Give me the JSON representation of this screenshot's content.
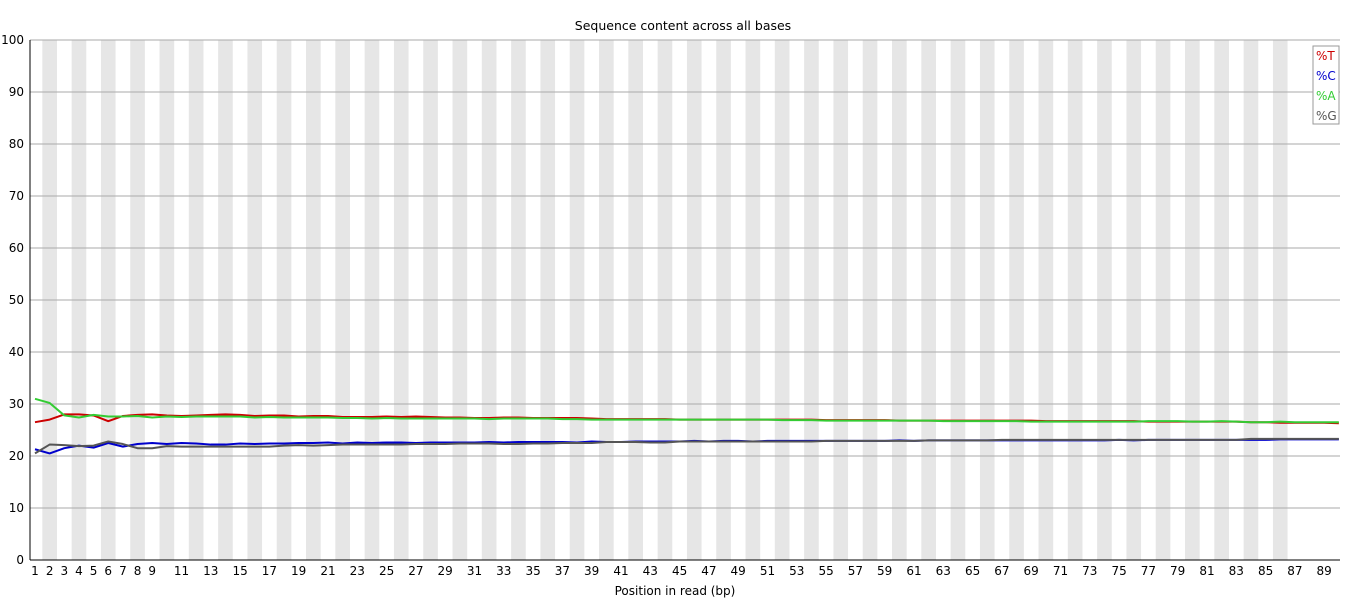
{
  "chart_data": {
    "type": "line",
    "title": "Sequence content across all bases",
    "xlabel": "Position in read (bp)",
    "ylabel": "",
    "ylim": [
      0,
      100
    ],
    "y_ticks": [
      0,
      10,
      20,
      30,
      40,
      50,
      60,
      70,
      80,
      90,
      100
    ],
    "x_tick_labels": [
      "1",
      "2",
      "3",
      "4",
      "5",
      "6",
      "7",
      "8",
      "9",
      "11",
      "13",
      "15",
      "17",
      "19",
      "21",
      "23",
      "25",
      "27",
      "29",
      "31",
      "33",
      "35",
      "37",
      "39",
      "41",
      "43",
      "45",
      "47",
      "49",
      "51",
      "53",
      "55",
      "57",
      "59",
      "61",
      "63",
      "65",
      "67",
      "69",
      "71",
      "73",
      "75",
      "77",
      "79",
      "81",
      "83",
      "85",
      "87",
      "89"
    ],
    "legend_position": "top-right",
    "grid": true,
    "series": [
      {
        "name": "%T",
        "color": "#cc0000",
        "values": [
          26.5,
          27.0,
          28.0,
          28.0,
          27.8,
          26.7,
          27.7,
          27.9,
          28.0,
          27.8,
          27.7,
          27.8,
          27.9,
          28.0,
          27.9,
          27.7,
          27.8,
          27.8,
          27.6,
          27.7,
          27.7,
          27.5,
          27.5,
          27.5,
          27.6,
          27.5,
          27.6,
          27.5,
          27.4,
          27.4,
          27.3,
          27.3,
          27.4,
          27.4,
          27.3,
          27.3,
          27.3,
          27.3,
          27.2,
          27.1,
          27.1,
          27.1,
          27.1,
          27.1,
          27.0,
          27.0,
          27.0,
          27.0,
          27.0,
          27.0,
          27.0,
          27.0,
          27.0,
          27.0,
          26.9,
          26.9,
          26.9,
          26.9,
          26.9,
          26.8,
          26.8,
          26.8,
          26.8,
          26.8,
          26.8,
          26.8,
          26.8,
          26.8,
          26.8,
          26.7,
          26.7,
          26.7,
          26.7,
          26.7,
          26.7,
          26.7,
          26.6,
          26.6,
          26.6,
          26.6,
          26.6,
          26.6,
          26.6,
          26.5,
          26.5,
          26.4,
          26.4,
          26.4,
          26.4,
          26.3
        ]
      },
      {
        "name": "%C",
        "color": "#0000cc",
        "values": [
          21.3,
          20.5,
          21.5,
          22.0,
          21.6,
          22.5,
          21.8,
          22.3,
          22.5,
          22.3,
          22.5,
          22.4,
          22.2,
          22.2,
          22.4,
          22.3,
          22.4,
          22.4,
          22.5,
          22.5,
          22.6,
          22.4,
          22.6,
          22.5,
          22.6,
          22.6,
          22.5,
          22.6,
          22.6,
          22.6,
          22.6,
          22.7,
          22.6,
          22.7,
          22.7,
          22.7,
          22.7,
          22.6,
          22.8,
          22.7,
          22.7,
          22.8,
          22.8,
          22.8,
          22.8,
          22.9,
          22.8,
          22.9,
          22.9,
          22.8,
          22.9,
          22.9,
          22.9,
          22.9,
          22.9,
          22.9,
          22.9,
          22.9,
          22.9,
          23.0,
          22.9,
          23.0,
          23.0,
          23.0,
          23.0,
          23.0,
          23.0,
          23.0,
          23.0,
          23.0,
          23.0,
          23.0,
          23.0,
          23.0,
          23.1,
          23.0,
          23.1,
          23.1,
          23.1,
          23.1,
          23.1,
          23.1,
          23.1,
          23.1,
          23.1,
          23.2,
          23.2,
          23.2,
          23.2,
          23.2
        ]
      },
      {
        "name": "%A",
        "color": "#33cc33",
        "values": [
          31.0,
          30.2,
          27.8,
          27.4,
          27.9,
          27.6,
          27.6,
          27.7,
          27.4,
          27.6,
          27.5,
          27.6,
          27.6,
          27.6,
          27.6,
          27.4,
          27.5,
          27.4,
          27.4,
          27.4,
          27.4,
          27.3,
          27.3,
          27.2,
          27.3,
          27.2,
          27.2,
          27.2,
          27.2,
          27.2,
          27.2,
          27.1,
          27.2,
          27.2,
          27.2,
          27.2,
          27.1,
          27.1,
          27.0,
          27.0,
          27.0,
          27.0,
          27.0,
          27.0,
          27.0,
          27.0,
          27.0,
          27.0,
          27.0,
          27.0,
          27.0,
          26.9,
          26.9,
          26.9,
          26.8,
          26.8,
          26.8,
          26.8,
          26.8,
          26.8,
          26.8,
          26.8,
          26.7,
          26.7,
          26.7,
          26.7,
          26.7,
          26.7,
          26.6,
          26.6,
          26.6,
          26.6,
          26.6,
          26.6,
          26.6,
          26.6,
          26.7,
          26.7,
          26.7,
          26.6,
          26.6,
          26.7,
          26.6,
          26.5,
          26.5,
          26.6,
          26.5,
          26.5,
          26.5,
          26.5
        ]
      },
      {
        "name": "%G",
        "color": "#555555",
        "values": [
          20.5,
          22.2,
          22.1,
          21.9,
          22.0,
          22.8,
          22.3,
          21.5,
          21.5,
          21.9,
          21.8,
          21.8,
          21.8,
          21.8,
          21.8,
          21.8,
          21.8,
          22.0,
          22.1,
          22.0,
          22.1,
          22.2,
          22.2,
          22.2,
          22.2,
          22.2,
          22.3,
          22.3,
          22.3,
          22.4,
          22.4,
          22.4,
          22.3,
          22.3,
          22.4,
          22.4,
          22.5,
          22.5,
          22.5,
          22.7,
          22.7,
          22.7,
          22.6,
          22.6,
          22.8,
          22.8,
          22.8,
          22.8,
          22.8,
          22.8,
          22.8,
          22.8,
          22.8,
          22.8,
          22.9,
          22.9,
          22.9,
          22.9,
          22.9,
          22.9,
          22.9,
          23.0,
          23.0,
          23.0,
          23.0,
          23.0,
          23.1,
          23.1,
          23.1,
          23.1,
          23.1,
          23.1,
          23.1,
          23.1,
          23.1,
          23.1,
          23.1,
          23.1,
          23.1,
          23.1,
          23.1,
          23.1,
          23.1,
          23.3,
          23.3,
          23.3,
          23.3,
          23.3,
          23.3,
          23.3
        ]
      }
    ]
  }
}
